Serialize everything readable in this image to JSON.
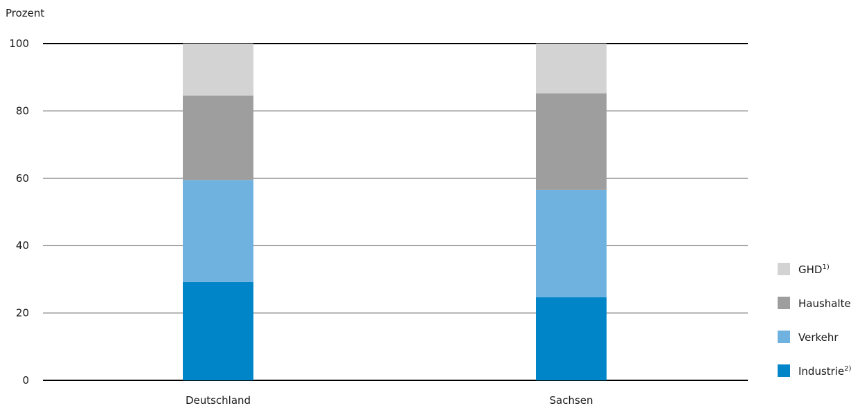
{
  "chart_data": {
    "type": "bar",
    "stacked": true,
    "ylabel": "Prozent",
    "ylim": [
      0,
      100
    ],
    "yticks": [
      0,
      20,
      40,
      60,
      80,
      100
    ],
    "grid": true,
    "legend_position": "right",
    "categories": [
      "Deutschland",
      "Sachsen"
    ],
    "series": [
      {
        "name": "Industrie",
        "sup": "2)",
        "color": "#0086c8",
        "values": [
          29.2,
          24.7
        ]
      },
      {
        "name": "Verkehr",
        "sup": "",
        "color": "#6fb2e0",
        "values": [
          30.3,
          31.8
        ]
      },
      {
        "name": "Haushalte",
        "sup": "",
        "color": "#9e9e9e",
        "values": [
          25.0,
          28.7
        ]
      },
      {
        "name": "GHD",
        "sup": "1)",
        "color": "#d3d3d3",
        "values": [
          15.5,
          14.8
        ]
      }
    ]
  }
}
